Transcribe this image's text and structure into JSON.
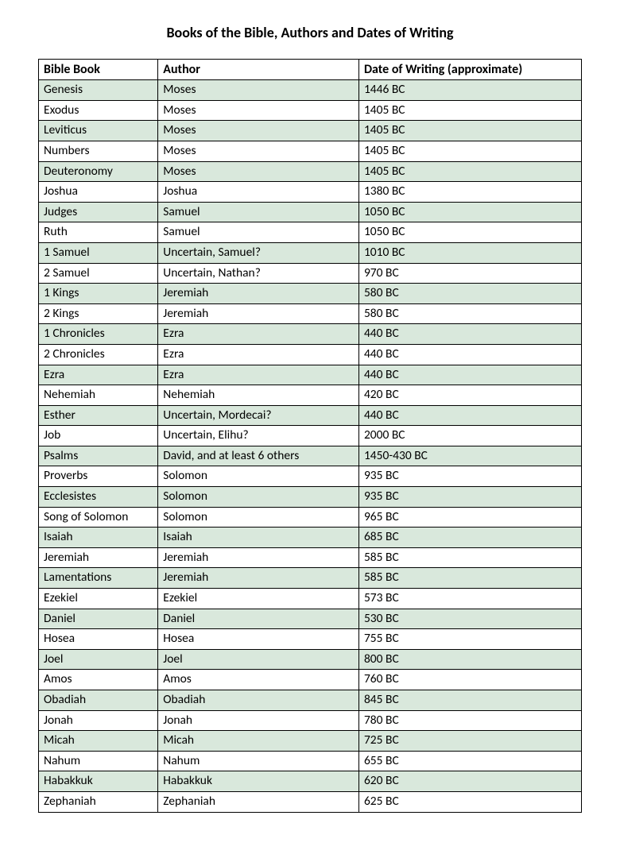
{
  "title": "Books of the Bible, Authors and Dates of Writing",
  "table": {
    "columns": [
      "Bible Book",
      "Author",
      "Date of Writing (approximate)"
    ],
    "column_widths_pct": [
      22,
      37,
      41
    ],
    "header_bg": "#ffffff",
    "row_shaded_bg": "#d9e8dc",
    "row_plain_bg": "#ffffff",
    "border_color": "#000000",
    "font_family": "Calibri",
    "header_fontsize": 16,
    "cell_fontsize": 15.5,
    "rows": [
      {
        "book": "Genesis",
        "author": "Moses",
        "date": "1446 BC",
        "shaded": true
      },
      {
        "book": "Exodus",
        "author": "Moses",
        "date": "1405 BC",
        "shaded": false
      },
      {
        "book": "Leviticus",
        "author": "Moses",
        "date": "1405 BC",
        "shaded": true
      },
      {
        "book": "Numbers",
        "author": "Moses",
        "date": "1405 BC",
        "shaded": false
      },
      {
        "book": "Deuteronomy",
        "author": "Moses",
        "date": "1405 BC",
        "shaded": true
      },
      {
        "book": "Joshua",
        "author": "Joshua",
        "date": "1380 BC",
        "shaded": false
      },
      {
        "book": "Judges",
        "author": "Samuel",
        "date": "1050 BC",
        "shaded": true
      },
      {
        "book": "Ruth",
        "author": "Samuel",
        "date": "1050 BC",
        "shaded": false
      },
      {
        "book": "1 Samuel",
        "author": "Uncertain, Samuel?",
        "date": "1010 BC",
        "shaded": true
      },
      {
        "book": "2 Samuel",
        "author": "Uncertain, Nathan?",
        "date": "970 BC",
        "shaded": false
      },
      {
        "book": "1 Kings",
        "author": "Jeremiah",
        "date": "580 BC",
        "shaded": true
      },
      {
        "book": "2 Kings",
        "author": "Jeremiah",
        "date": "580 BC",
        "shaded": false
      },
      {
        "book": "1 Chronicles",
        "author": "Ezra",
        "date": "440 BC",
        "shaded": true
      },
      {
        "book": "2 Chronicles",
        "author": "Ezra",
        "date": "440 BC",
        "shaded": false
      },
      {
        "book": "Ezra",
        "author": "Ezra",
        "date": "440 BC",
        "shaded": true
      },
      {
        "book": "Nehemiah",
        "author": "Nehemiah",
        "date": "420 BC",
        "shaded": false
      },
      {
        "book": "Esther",
        "author": "Uncertain, Mordecai?",
        "date": "440 BC",
        "shaded": true
      },
      {
        "book": "Job",
        "author": "Uncertain, Elihu?",
        "date": "2000 BC",
        "shaded": false
      },
      {
        "book": "Psalms",
        "author": "David, and at least 6 others",
        "date": "1450-430 BC",
        "shaded": true
      },
      {
        "book": "Proverbs",
        "author": "Solomon",
        "date": "935 BC",
        "shaded": false
      },
      {
        "book": "Ecclesistes",
        "author": "Solomon",
        "date": "935 BC",
        "shaded": true
      },
      {
        "book": "Song of Solomon",
        "author": "Solomon",
        "date": "965 BC",
        "shaded": false
      },
      {
        "book": "Isaiah",
        "author": "Isaiah",
        "date": "685 BC",
        "shaded": true
      },
      {
        "book": "Jeremiah",
        "author": "Jeremiah",
        "date": "585 BC",
        "shaded": false
      },
      {
        "book": "Lamentations",
        "author": "Jeremiah",
        "date": "585 BC",
        "shaded": true
      },
      {
        "book": "Ezekiel",
        "author": "Ezekiel",
        "date": "573 BC",
        "shaded": false
      },
      {
        "book": "Daniel",
        "author": "Daniel",
        "date": "530 BC",
        "shaded": true
      },
      {
        "book": "Hosea",
        "author": "Hosea",
        "date": "755 BC",
        "shaded": false
      },
      {
        "book": "Joel",
        "author": "Joel",
        "date": "800 BC",
        "shaded": true
      },
      {
        "book": "Amos",
        "author": "Amos",
        "date": "760 BC",
        "shaded": false
      },
      {
        "book": "Obadiah",
        "author": "Obadiah",
        "date": "845 BC",
        "shaded": true
      },
      {
        "book": "Jonah",
        "author": "Jonah",
        "date": "780 BC",
        "shaded": false
      },
      {
        "book": "Micah",
        "author": "Micah",
        "date": "725 BC",
        "shaded": true
      },
      {
        "book": "Nahum",
        "author": "Nahum",
        "date": "655 BC",
        "shaded": false
      },
      {
        "book": "Habakkuk",
        "author": "Habakkuk",
        "date": "620 BC",
        "shaded": true
      },
      {
        "book": "Zephaniah",
        "author": "Zephaniah",
        "date": "625 BC",
        "shaded": false
      }
    ]
  }
}
